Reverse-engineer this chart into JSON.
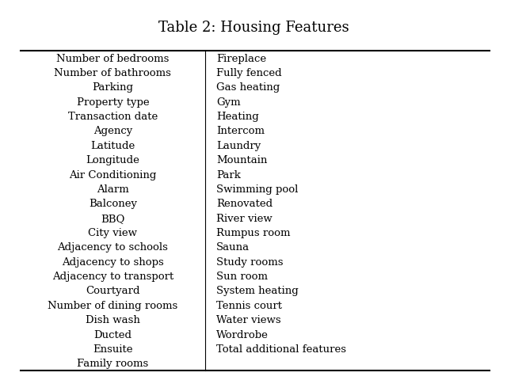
{
  "title": "Table 2: Housing Features",
  "col1": [
    "Number of bedrooms",
    "Number of bathrooms",
    "Parking",
    "Property type",
    "Transaction date",
    "Agency",
    "Latitude",
    "Longitude",
    "Air Conditioning",
    "Alarm",
    "Balconey",
    "BBQ",
    "City view",
    "Adjacency to schools",
    "Adjacency to shops",
    "Adjacency to transport",
    "Courtyard",
    "Number of dining rooms",
    "Dish wash",
    "Ducted",
    "Ensuite",
    "Family rooms"
  ],
  "col2": [
    "Fireplace",
    "Fully fenced",
    "Gas heating",
    "Gym",
    "Heating",
    "Intercom",
    "Laundry",
    "Mountain",
    "Park",
    "Swimming pool",
    "Renovated",
    "River view",
    "Rumpus room",
    "Sauna",
    "Study rooms",
    "Sun room",
    "System heating",
    "Tennis court",
    "Water views",
    "Wordrobe",
    "Total additional features",
    ""
  ],
  "title_fontsize": 13,
  "cell_fontsize": 9.5,
  "bg_color": "#ffffff",
  "text_color": "#000000",
  "divider_color": "#000000",
  "fig_width": 6.4,
  "fig_height": 4.81,
  "dpi": 100
}
